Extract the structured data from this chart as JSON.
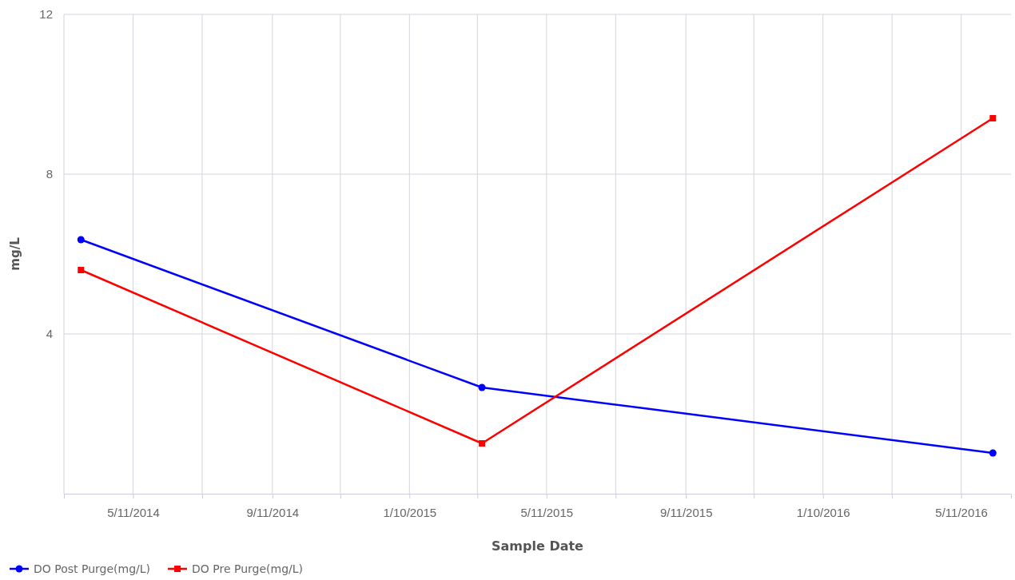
{
  "chart_data": {
    "type": "line",
    "xlabel": "Sample Date",
    "ylabel": "mg/L",
    "xlim": [
      "2014-03-11",
      "2016-06-24"
    ],
    "ylim": [
      0,
      12
    ],
    "yticks": [
      4,
      8,
      12
    ],
    "xticks": [
      {
        "value": "2014-03-11",
        "label": null
      },
      {
        "value": "2014-05-11",
        "label": "5/11/2014"
      },
      {
        "value": "2014-07-11",
        "label": null
      },
      {
        "value": "2014-09-11",
        "label": "9/11/2014"
      },
      {
        "value": "2014-11-10",
        "label": null
      },
      {
        "value": "2015-01-10",
        "label": "1/10/2015"
      },
      {
        "value": "2015-03-11",
        "label": null
      },
      {
        "value": "2015-05-11",
        "label": "5/11/2015"
      },
      {
        "value": "2015-07-11",
        "label": null
      },
      {
        "value": "2015-09-11",
        "label": "9/11/2015"
      },
      {
        "value": "2015-11-10",
        "label": null
      },
      {
        "value": "2016-01-10",
        "label": "1/10/2016"
      },
      {
        "value": "2016-03-11",
        "label": null
      },
      {
        "value": "2016-05-11",
        "label": "5/11/2016"
      }
    ],
    "x": [
      "2014-03-26",
      "2015-03-15",
      "2016-06-08"
    ],
    "grid": true,
    "legend": "bottom left",
    "series": [
      {
        "name": "DO Post Purge(mg/L)",
        "color": "#0000ff",
        "marker": "circle",
        "values": [
          6.36,
          2.66,
          1.02
        ]
      },
      {
        "name": "DO Pre Purge(mg/L)",
        "color": "#ff0000",
        "marker": "square",
        "values": [
          5.6,
          1.26,
          9.4
        ]
      }
    ]
  }
}
